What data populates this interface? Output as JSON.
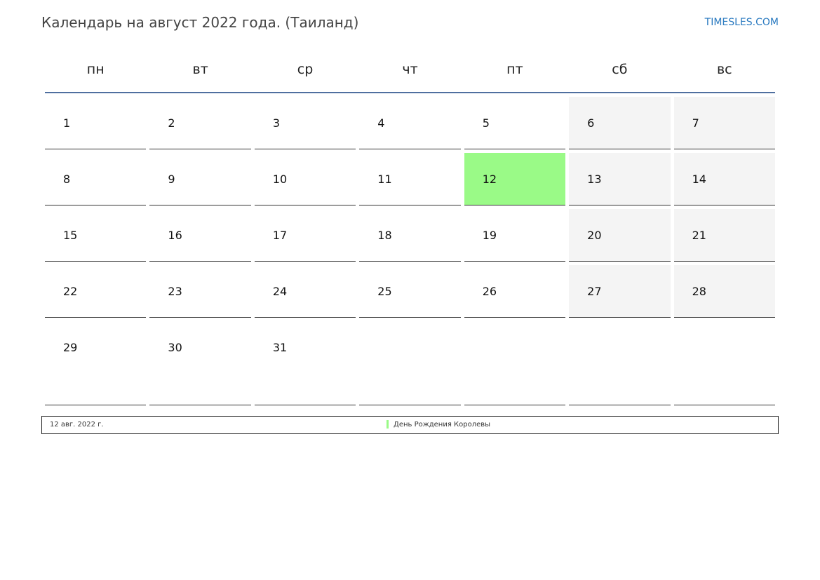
{
  "header": {
    "title": "Календарь на август 2022 года. (Таиланд)",
    "brand": "TIMESLES.COM"
  },
  "weekdays": [
    "пн",
    "вт",
    "ср",
    "чт",
    "пт",
    "сб",
    "вс"
  ],
  "days": [
    "1",
    "2",
    "3",
    "4",
    "5",
    "6",
    "7",
    "8",
    "9",
    "10",
    "11",
    "12",
    "13",
    "14",
    "15",
    "16",
    "17",
    "18",
    "19",
    "20",
    "21",
    "22",
    "23",
    "24",
    "25",
    "26",
    "27",
    "28",
    "29",
    "30",
    "31"
  ],
  "holiday_day": "12",
  "colors": {
    "holiday": "#9afa87",
    "weekend": "#f4f4f4",
    "header_line": "#4f6f9f"
  },
  "legend": {
    "date": "12 авг. 2022 г.",
    "name": "День Рождения Королевы"
  }
}
